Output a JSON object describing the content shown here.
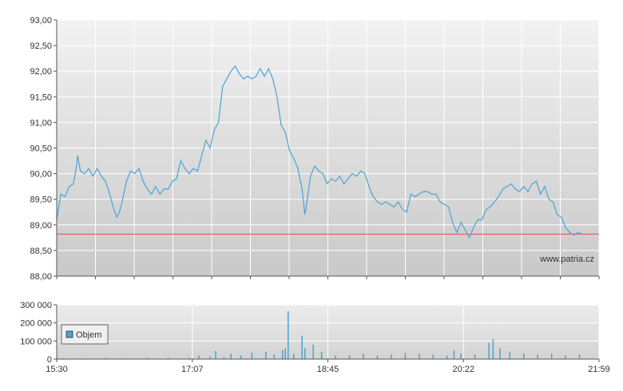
{
  "chart_data": [
    {
      "type": "line",
      "watermark": "www.patria.cz",
      "xlim": [
        "15:30",
        "21:59"
      ],
      "ylim": [
        88.0,
        93.0
      ],
      "y_ticks": [
        "93,00",
        "92,50",
        "92,00",
        "91,50",
        "91,00",
        "90,50",
        "90,00",
        "89,50",
        "89,00",
        "88,50",
        "88,00"
      ],
      "reference_line": 88.82,
      "grid": true,
      "series": [
        {
          "color": "#4aa3d3",
          "points": [
            [
              "15:30",
              89.1
            ],
            [
              "15:33",
              89.6
            ],
            [
              "15:36",
              89.55
            ],
            [
              "15:39",
              89.75
            ],
            [
              "15:42",
              89.8
            ],
            [
              "15:44",
              90.1
            ],
            [
              "15:45",
              90.35
            ],
            [
              "15:47",
              90.05
            ],
            [
              "15:50",
              90.0
            ],
            [
              "15:53",
              90.1
            ],
            [
              "15:56",
              89.95
            ],
            [
              "15:59",
              90.1
            ],
            [
              "16:02",
              89.95
            ],
            [
              "16:05",
              89.85
            ],
            [
              "16:08",
              89.6
            ],
            [
              "16:11",
              89.3
            ],
            [
              "16:13",
              89.15
            ],
            [
              "16:15",
              89.25
            ],
            [
              "16:17",
              89.45
            ],
            [
              "16:20",
              89.85
            ],
            [
              "16:23",
              90.05
            ],
            [
              "16:26",
              90.0
            ],
            [
              "16:29",
              90.1
            ],
            [
              "16:32",
              89.85
            ],
            [
              "16:35",
              89.7
            ],
            [
              "16:38",
              89.6
            ],
            [
              "16:41",
              89.75
            ],
            [
              "16:44",
              89.6
            ],
            [
              "16:47",
              89.7
            ],
            [
              "16:50",
              89.7
            ],
            [
              "16:53",
              89.85
            ],
            [
              "16:56",
              89.9
            ],
            [
              "16:59",
              90.25
            ],
            [
              "17:02",
              90.1
            ],
            [
              "17:05",
              90.0
            ],
            [
              "17:08",
              90.1
            ],
            [
              "17:11",
              90.05
            ],
            [
              "17:14",
              90.35
            ],
            [
              "17:17",
              90.65
            ],
            [
              "17:20",
              90.5
            ],
            [
              "17:23",
              90.85
            ],
            [
              "17:26",
              91.0
            ],
            [
              "17:29",
              91.7
            ],
            [
              "17:32",
              91.85
            ],
            [
              "17:35",
              92.0
            ],
            [
              "17:38",
              92.1
            ],
            [
              "17:41",
              91.95
            ],
            [
              "17:44",
              91.85
            ],
            [
              "17:47",
              91.9
            ],
            [
              "17:50",
              91.85
            ],
            [
              "17:53",
              91.9
            ],
            [
              "17:56",
              92.05
            ],
            [
              "17:59",
              91.9
            ],
            [
              "18:02",
              92.05
            ],
            [
              "18:05",
              91.85
            ],
            [
              "18:08",
              91.5
            ],
            [
              "18:11",
              90.95
            ],
            [
              "18:14",
              90.8
            ],
            [
              "18:17",
              90.45
            ],
            [
              "18:20",
              90.3
            ],
            [
              "18:23",
              90.1
            ],
            [
              "18:26",
              89.7
            ],
            [
              "18:28",
              89.2
            ],
            [
              "18:30",
              89.55
            ],
            [
              "18:32",
              89.95
            ],
            [
              "18:35",
              90.15
            ],
            [
              "18:38",
              90.05
            ],
            [
              "18:41",
              90.0
            ],
            [
              "18:44",
              89.8
            ],
            [
              "18:47",
              89.9
            ],
            [
              "18:50",
              89.85
            ],
            [
              "18:53",
              89.95
            ],
            [
              "18:56",
              89.8
            ],
            [
              "18:59",
              89.9
            ],
            [
              "19:02",
              90.0
            ],
            [
              "19:05",
              89.95
            ],
            [
              "19:08",
              90.05
            ],
            [
              "19:11",
              90.0
            ],
            [
              "19:14",
              89.75
            ],
            [
              "19:17",
              89.55
            ],
            [
              "19:20",
              89.45
            ],
            [
              "19:23",
              89.4
            ],
            [
              "19:26",
              89.45
            ],
            [
              "19:29",
              89.4
            ],
            [
              "19:32",
              89.35
            ],
            [
              "19:35",
              89.45
            ],
            [
              "19:38",
              89.3
            ],
            [
              "19:41",
              89.25
            ],
            [
              "19:44",
              89.6
            ],
            [
              "19:47",
              89.55
            ],
            [
              "19:50",
              89.6
            ],
            [
              "19:53",
              89.65
            ],
            [
              "19:56",
              89.65
            ],
            [
              "19:59",
              89.6
            ],
            [
              "20:02",
              89.6
            ],
            [
              "20:05",
              89.45
            ],
            [
              "20:08",
              89.4
            ],
            [
              "20:11",
              89.35
            ],
            [
              "20:14",
              89.05
            ],
            [
              "20:17",
              88.85
            ],
            [
              "20:20",
              89.05
            ],
            [
              "20:23",
              88.9
            ],
            [
              "20:26",
              88.75
            ],
            [
              "20:29",
              88.95
            ],
            [
              "20:32",
              89.1
            ],
            [
              "20:35",
              89.1
            ],
            [
              "20:38",
              89.3
            ],
            [
              "20:41",
              89.35
            ],
            [
              "20:44",
              89.45
            ],
            [
              "20:47",
              89.55
            ],
            [
              "20:50",
              89.7
            ],
            [
              "20:53",
              89.75
            ],
            [
              "20:56",
              89.8
            ],
            [
              "20:59",
              89.7
            ],
            [
              "21:02",
              89.65
            ],
            [
              "21:05",
              89.75
            ],
            [
              "21:08",
              89.65
            ],
            [
              "21:11",
              89.8
            ],
            [
              "21:14",
              89.85
            ],
            [
              "21:17",
              89.6
            ],
            [
              "21:20",
              89.75
            ],
            [
              "21:23",
              89.5
            ],
            [
              "21:26",
              89.45
            ],
            [
              "21:29",
              89.2
            ],
            [
              "21:32",
              89.15
            ],
            [
              "21:35",
              88.95
            ],
            [
              "21:38",
              88.85
            ],
            [
              "21:41",
              88.8
            ],
            [
              "21:44",
              88.85
            ],
            [
              "21:47",
              88.82
            ]
          ]
        }
      ]
    },
    {
      "type": "bar",
      "xlim": [
        "15:30",
        "21:59"
      ],
      "ylim": [
        0,
        300000
      ],
      "y_ticks": [
        "300 000",
        "200 000",
        "100 000",
        "0"
      ],
      "x_ticks": [
        "15:30",
        "17:07",
        "18:45",
        "20:22",
        "21:59"
      ],
      "legend": "top-left",
      "grid": true,
      "series": [
        {
          "name": "Objem",
          "color": "#4aa3d3",
          "points": [
            [
              "15:35",
              5000
            ],
            [
              "15:50",
              4000
            ],
            [
              "16:05",
              6000
            ],
            [
              "16:20",
              5000
            ],
            [
              "16:35",
              8000
            ],
            [
              "16:50",
              6000
            ],
            [
              "17:05",
              7000
            ],
            [
              "17:12",
              20000
            ],
            [
              "17:20",
              15000
            ],
            [
              "17:24",
              45000
            ],
            [
              "17:30",
              12000
            ],
            [
              "17:35",
              30000
            ],
            [
              "17:42",
              20000
            ],
            [
              "17:50",
              35000
            ],
            [
              "18:00",
              40000
            ],
            [
              "18:06",
              25000
            ],
            [
              "18:12",
              50000
            ],
            [
              "18:14",
              60000
            ],
            [
              "18:16",
              265000
            ],
            [
              "18:20",
              30000
            ],
            [
              "18:26",
              130000
            ],
            [
              "18:28",
              60000
            ],
            [
              "18:34",
              80000
            ],
            [
              "18:40",
              40000
            ],
            [
              "18:50",
              20000
            ],
            [
              "19:00",
              20000
            ],
            [
              "19:10",
              30000
            ],
            [
              "19:20",
              20000
            ],
            [
              "19:30",
              25000
            ],
            [
              "19:40",
              35000
            ],
            [
              "19:50",
              30000
            ],
            [
              "20:00",
              25000
            ],
            [
              "20:10",
              20000
            ],
            [
              "20:15",
              50000
            ],
            [
              "20:20",
              30000
            ],
            [
              "20:30",
              25000
            ],
            [
              "20:40",
              90000
            ],
            [
              "20:43",
              110000
            ],
            [
              "20:48",
              60000
            ],
            [
              "20:55",
              40000
            ],
            [
              "21:05",
              30000
            ],
            [
              "21:15",
              25000
            ],
            [
              "21:25",
              30000
            ],
            [
              "21:35",
              20000
            ],
            [
              "21:45",
              25000
            ]
          ]
        }
      ]
    }
  ]
}
